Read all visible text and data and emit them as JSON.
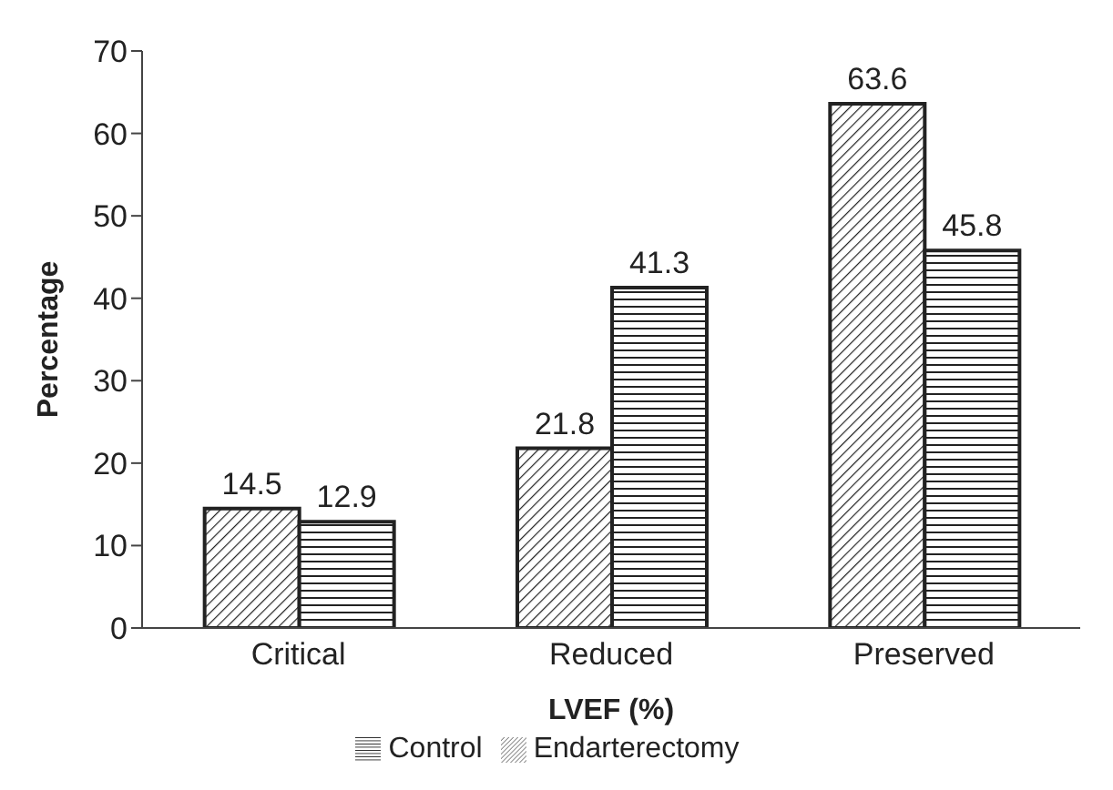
{
  "chart_data": {
    "type": "bar",
    "xlabel": "LVEF (%)",
    "ylabel": "Percentage",
    "categories": [
      "Critical",
      "Reduced",
      "Preserved"
    ],
    "series": [
      {
        "name": "Endarterectomy",
        "color": "#222222",
        "values": [
          14.5,
          21.8,
          63.6
        ]
      },
      {
        "name": "Control",
        "color": "#222222",
        "values": [
          12.9,
          41.3,
          45.8
        ]
      }
    ],
    "ylim": [
      0,
      70
    ],
    "yticks": [
      0,
      10,
      20,
      30,
      40,
      50,
      60,
      70
    ],
    "data_labels": true,
    "legend": "bottom",
    "grid": false
  }
}
